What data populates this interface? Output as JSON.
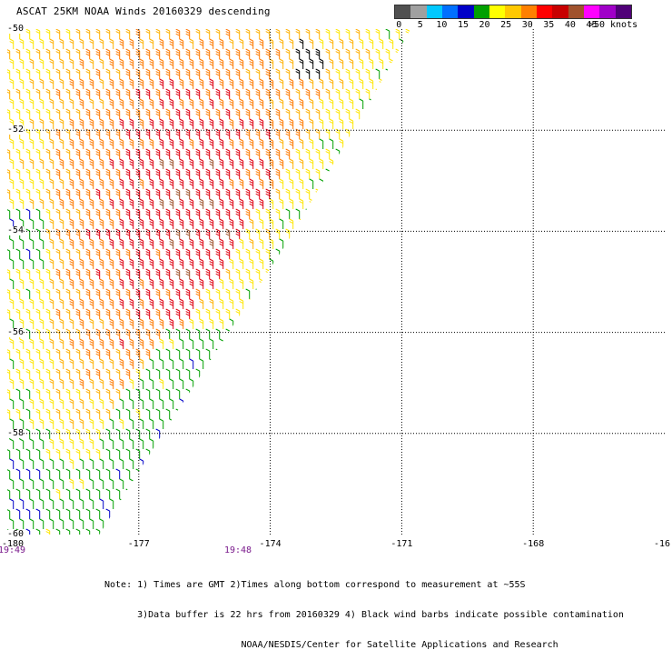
{
  "title": "ASCAT 25KM NOAA Winds 20160329 descending",
  "legend": {
    "unit": "knots",
    "labels": [
      "0",
      "5",
      "10",
      "15",
      "20",
      "25",
      "30",
      "35",
      "40",
      "45",
      ">50 knots"
    ],
    "colors": [
      "#505050",
      "#a0a0a0",
      "#00c8ff",
      "#0070ff",
      "#0000c8",
      "#00a000",
      "#ffff00",
      "#ffc800",
      "#ff8000",
      "#ff0000",
      "#c80000",
      "#a0522d",
      "#ff00ff",
      "#a000c8",
      "#500078"
    ]
  },
  "axes": {
    "lon_ticks": [
      "-180",
      "-177",
      "-174",
      "-171",
      "-168",
      "-16"
    ],
    "lat_ticks": [
      "-50",
      "-52",
      "-54",
      "-56",
      "-58",
      "-60"
    ]
  },
  "times": [
    "19:49",
    "19:48"
  ],
  "notes": [
    "Note: 1) Times are GMT 2)Times along bottom correspond to measurement at ~55S",
    "      3)Data buffer is 22 hrs from 20160329 4) Black wind barbs indicate possible contamination",
    "                         NOAA/NESDIS/Center for Satellite Applications and Research"
  ],
  "chart_data": {
    "type": "map",
    "title": "ASCAT 25KM NOAA Winds 20160329 descending",
    "xlabel": "",
    "ylabel": "",
    "lon_range": [
      -180,
      -165
    ],
    "lat_range": [
      -60,
      -50
    ],
    "grid": true,
    "legend_placement": "top-right",
    "wind_speed_bins_knots": [
      0,
      5,
      10,
      15,
      20,
      25,
      30,
      35,
      40,
      45,
      50
    ],
    "swath": {
      "polygon_lonlat": [
        [
          -180,
          -50
        ],
        [
          -170.8,
          -50
        ],
        [
          -171.7,
          -51.4
        ],
        [
          -173.6,
          -54.2
        ],
        [
          -175.4,
          -56.6
        ],
        [
          -176.6,
          -58.2
        ],
        [
          -177.9,
          -60
        ],
        [
          -180,
          -60
        ]
      ],
      "regions": [
        {
          "area": "northwest coastal strip",
          "speed_knots": 25
        },
        {
          "area": "west-central interior",
          "speed_knots": 28
        },
        {
          "area": "central core",
          "speed_knots": 37
        },
        {
          "area": "south-central",
          "speed_knots": 27
        },
        {
          "area": "eastern swath edge",
          "speed_knots": 22
        },
        {
          "area": "southeastern edge",
          "speed_knots": 17
        },
        {
          "area": "southwest corner",
          "speed_knots": 16
        }
      ],
      "contamination_flagged_near_lonlat": [
        -173.2,
        -50.6
      ]
    }
  }
}
